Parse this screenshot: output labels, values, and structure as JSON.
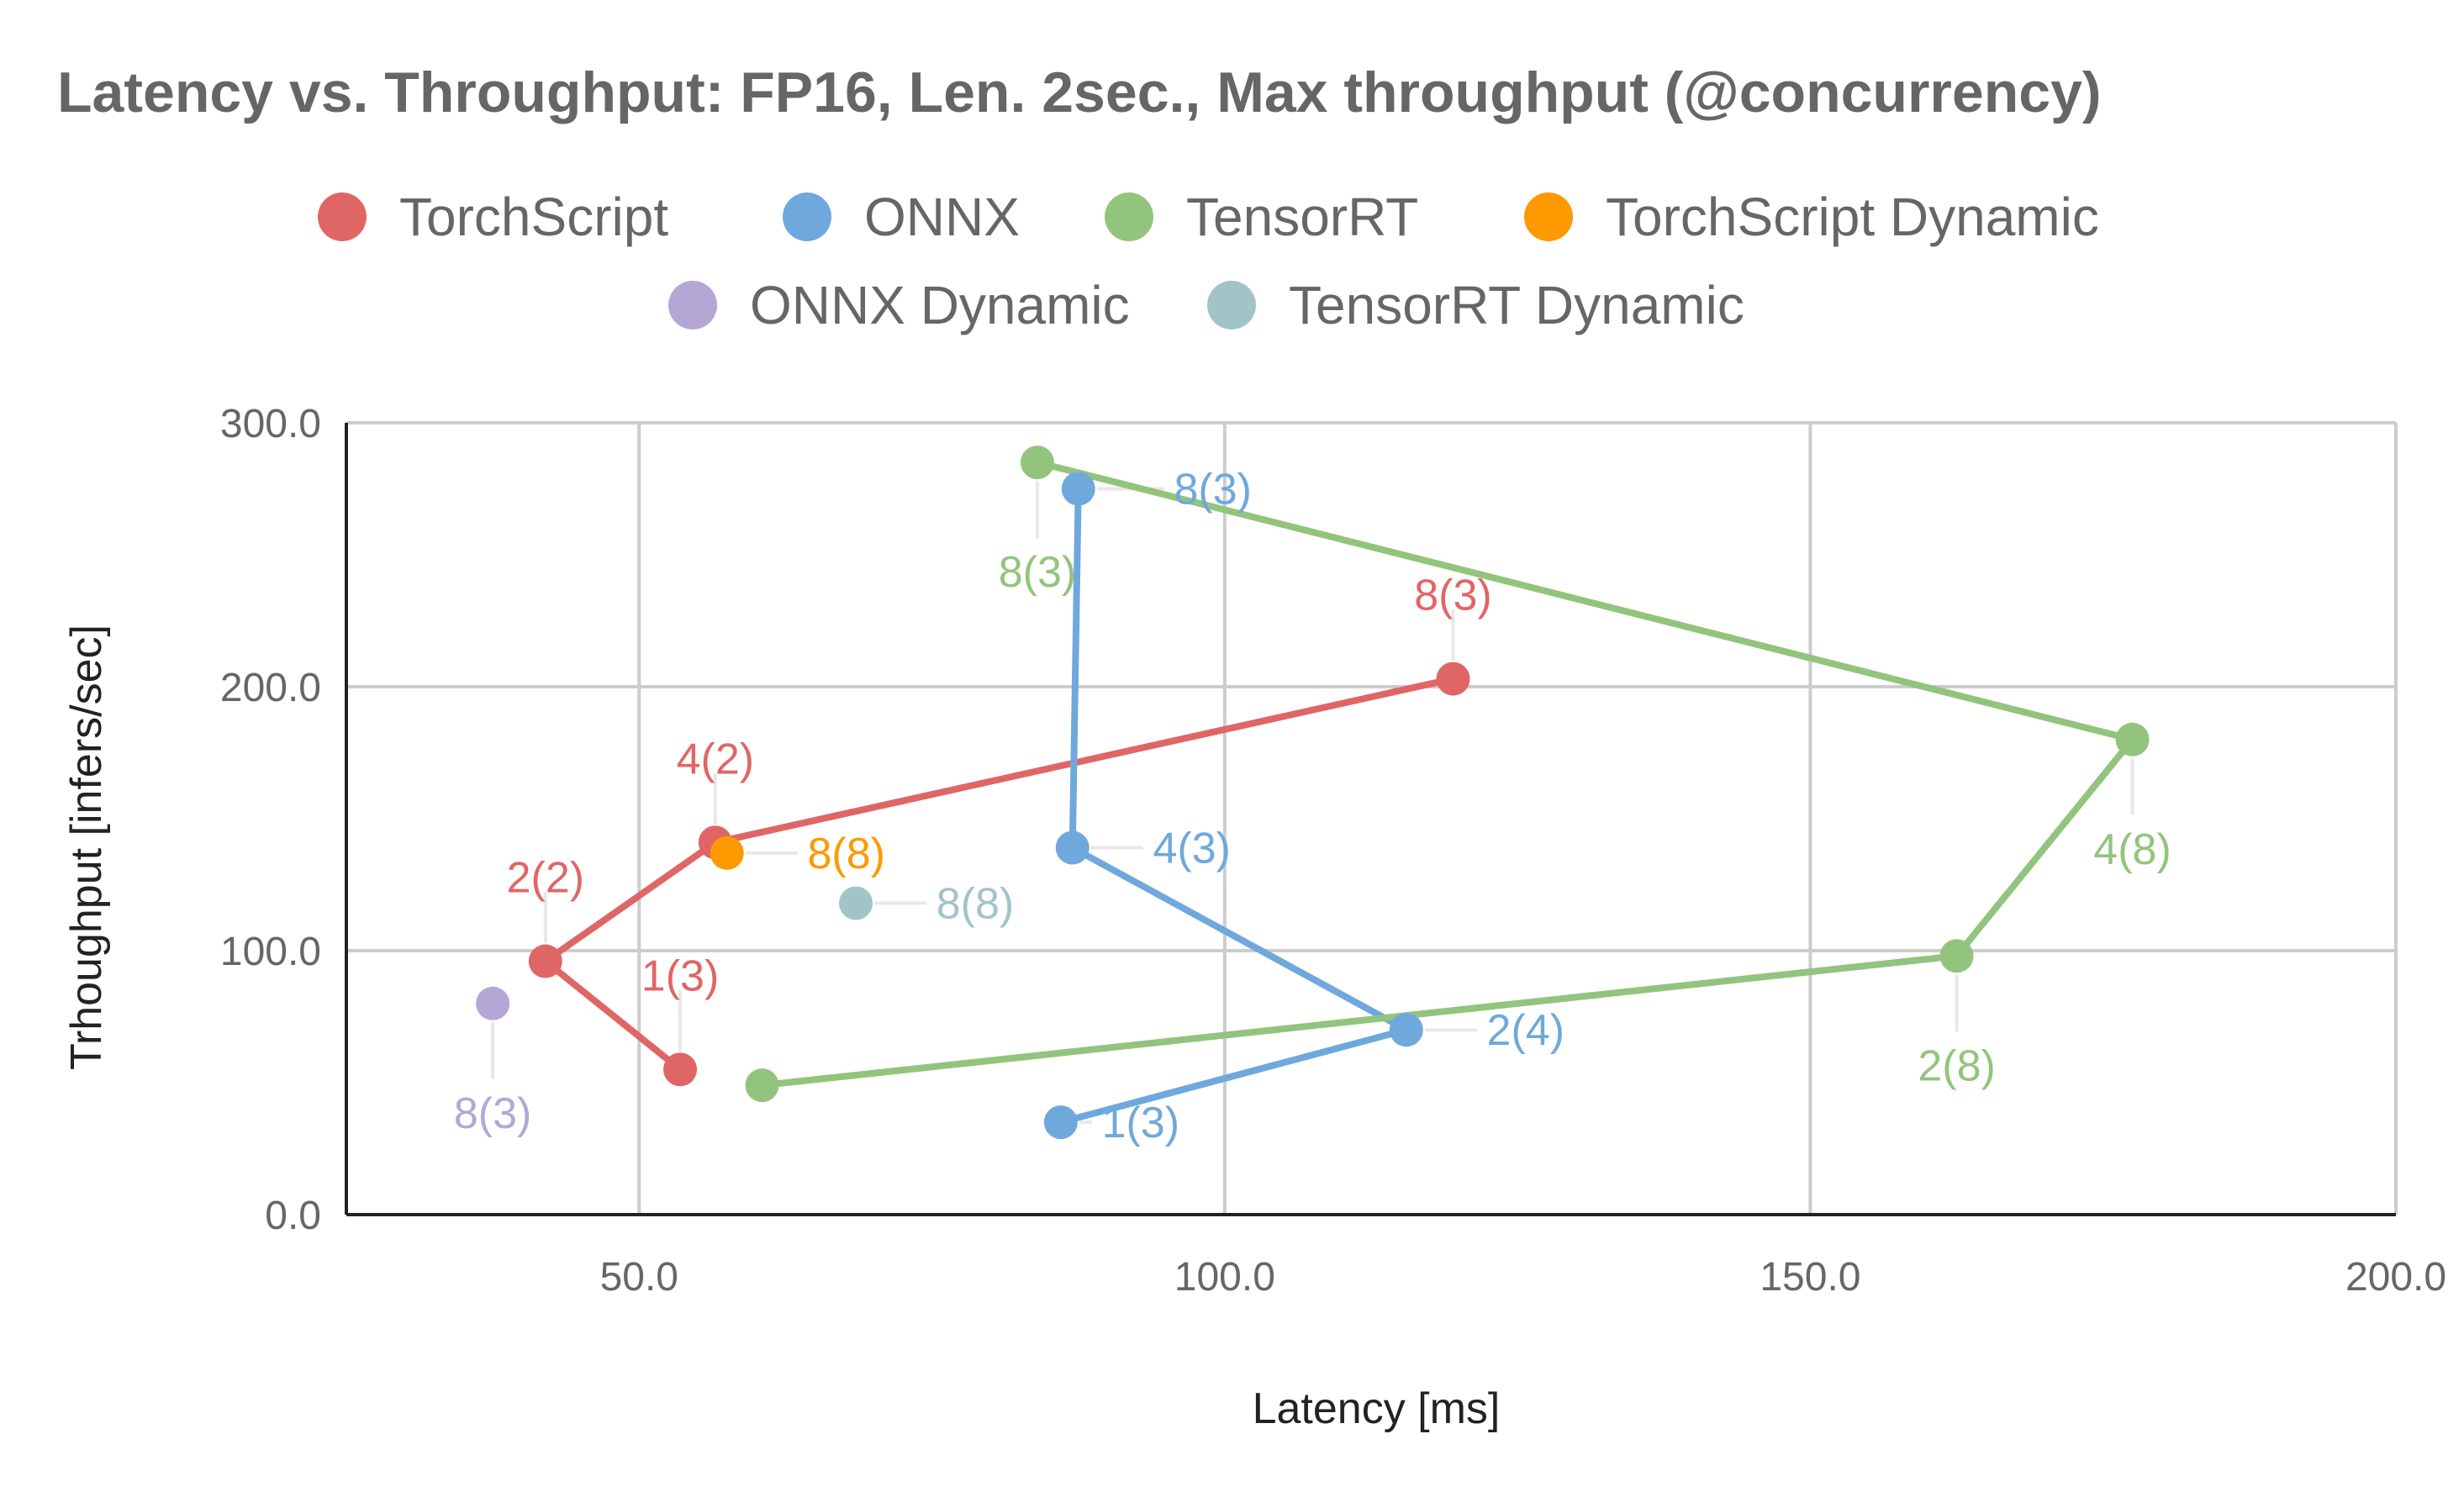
{
  "chart_data": {
    "type": "scatter",
    "title": "Latency vs. Throughput: FP16, Len. 2sec., Max throughput (@concurrency)",
    "xlabel": "Latency [ms]",
    "ylabel": "Trhoughput [infers/sec]",
    "xlim": [
      25,
      200
    ],
    "ylim": [
      0,
      300
    ],
    "x_ticks": [
      "50.0",
      "100.0",
      "150.0",
      "200.0"
    ],
    "y_ticks": [
      "0.0",
      "100.0",
      "200.0",
      "300.0"
    ],
    "grid": true,
    "legend_position": "top",
    "series": [
      {
        "name": "TorchScript",
        "color": "#e06666",
        "connected": true,
        "points": [
          {
            "x": 53.5,
            "y": 55,
            "label": "1(3)"
          },
          {
            "x": 42.0,
            "y": 96,
            "label": "2(2)"
          },
          {
            "x": 56.5,
            "y": 141,
            "label": "4(2)"
          },
          {
            "x": 119.5,
            "y": 203,
            "label": "8(3)"
          }
        ]
      },
      {
        "name": "ONNX",
        "color": "#6fa8dc",
        "connected": true,
        "points": [
          {
            "x": 86.0,
            "y": 35,
            "label": "1(3)"
          },
          {
            "x": 115.5,
            "y": 70,
            "label": "2(4)"
          },
          {
            "x": 87.0,
            "y": 139,
            "label": "4(3)"
          },
          {
            "x": 87.5,
            "y": 275,
            "label": "8(3)"
          }
        ]
      },
      {
        "name": "TensorRT",
        "color": "#93c47d",
        "connected": true,
        "points": [
          {
            "x": 60.5,
            "y": 49,
            "label": ""
          },
          {
            "x": 162.5,
            "y": 98,
            "label": "2(8)"
          },
          {
            "x": 177.5,
            "y": 180,
            "label": "4(8)"
          },
          {
            "x": 84.0,
            "y": 285,
            "label": "8(3)"
          }
        ]
      },
      {
        "name": "TorchScript Dynamic",
        "color": "#ff9900",
        "connected": false,
        "points": [
          {
            "x": 57.5,
            "y": 137,
            "label": "8(8)"
          }
        ]
      },
      {
        "name": "ONNX Dynamic",
        "color": "#b4a7d6",
        "connected": false,
        "points": [
          {
            "x": 37.5,
            "y": 80,
            "label": "8(3)"
          }
        ]
      },
      {
        "name": "TensorRT Dynamic",
        "color": "#a2c4c9",
        "connected": false,
        "points": [
          {
            "x": 68.5,
            "y": 118,
            "label": "8(8)"
          }
        ]
      }
    ]
  }
}
